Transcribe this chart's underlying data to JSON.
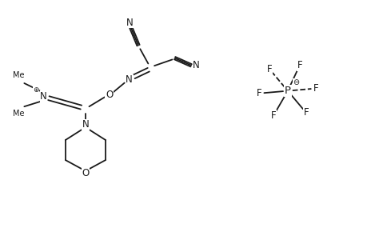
{
  "bg_color": "#ffffff",
  "line_color": "#1a1a1a",
  "text_color": "#1a1a1a",
  "line_width": 1.3,
  "font_size": 8.5,
  "small_font_size": 5.5,
  "xlim": [
    0,
    10
  ],
  "ylim": [
    0,
    6.5
  ]
}
